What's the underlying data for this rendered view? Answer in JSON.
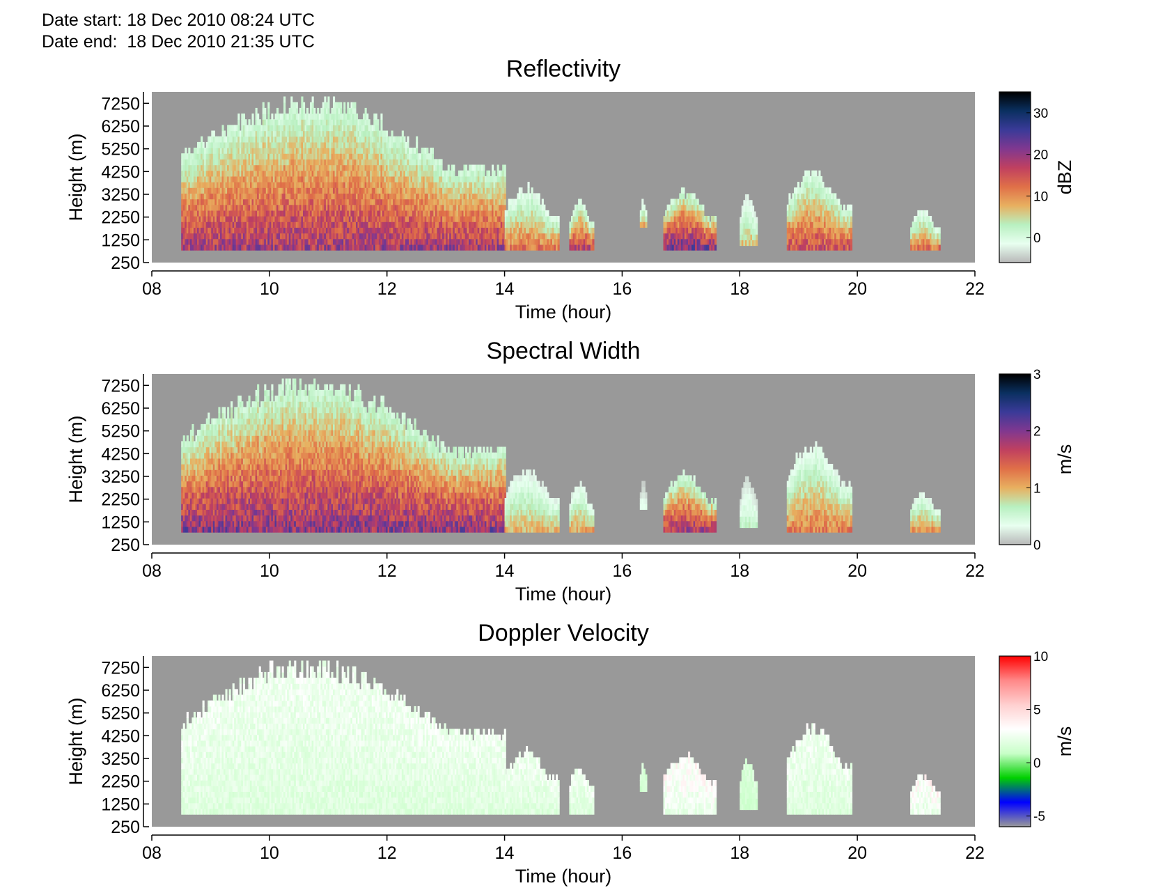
{
  "header": {
    "date_start_label": "Date start:",
    "date_start": "18 Dec 2010 08:24 UTC",
    "date_end_label": "Date end:",
    "date_end": "18 Dec 2010 21:35 UTC"
  },
  "chart_data": [
    {
      "type": "heatmap",
      "title": "Reflectivity",
      "xlabel": "Time (hour)",
      "ylabel": "Height (m)",
      "xlim": [
        8,
        22
      ],
      "ylim": [
        250,
        7750
      ],
      "x_ticks": [
        "08",
        "10",
        "12",
        "14",
        "16",
        "18",
        "20",
        "22"
      ],
      "y_ticks": [
        "250",
        "1250",
        "2250",
        "3250",
        "4250",
        "5250",
        "6250",
        "7250"
      ],
      "colorbar": {
        "label": "dBZ",
        "min": -6,
        "max": 35,
        "ticks": [
          "0",
          "10",
          "20",
          "30"
        ],
        "tick_values": [
          0,
          10,
          20,
          30
        ],
        "colors": [
          "#b8b8b8",
          "#e8fff0",
          "#b8f0c0",
          "#e8b060",
          "#e07048",
          "#c04060",
          "#803890",
          "#3a3a98",
          "#0a3060",
          "#000000"
        ]
      },
      "background_color": "#999999",
      "echo_regions": [
        {
          "t_start": 8.5,
          "t_end": 14.0,
          "h_top": 7600,
          "h_bottom": 800,
          "peak_value": 22
        },
        {
          "t_start": 14.0,
          "t_end": 14.9,
          "h_top": 3600,
          "h_bottom": 800,
          "peak_value": 14
        },
        {
          "t_start": 15.1,
          "t_end": 15.5,
          "h_top": 2900,
          "h_bottom": 800,
          "peak_value": 20
        },
        {
          "t_start": 16.3,
          "t_end": 16.4,
          "h_top": 3000,
          "h_bottom": 1800,
          "peak_value": 10
        },
        {
          "t_start": 16.7,
          "t_end": 17.6,
          "h_top": 3400,
          "h_bottom": 800,
          "peak_value": 25
        },
        {
          "t_start": 18.0,
          "t_end": 18.3,
          "h_top": 3200,
          "h_bottom": 1000,
          "peak_value": 8
        },
        {
          "t_start": 18.8,
          "t_end": 19.9,
          "h_top": 4300,
          "h_bottom": 800,
          "peak_value": 18
        },
        {
          "t_start": 20.9,
          "t_end": 21.4,
          "h_top": 2500,
          "h_bottom": 800,
          "peak_value": 14
        }
      ]
    },
    {
      "type": "heatmap",
      "title": "Spectral Width",
      "xlabel": "Time (hour)",
      "ylabel": "Height (m)",
      "xlim": [
        8,
        22
      ],
      "ylim": [
        250,
        7750
      ],
      "x_ticks": [
        "08",
        "10",
        "12",
        "14",
        "16",
        "18",
        "20",
        "22"
      ],
      "y_ticks": [
        "250",
        "1250",
        "2250",
        "3250",
        "4250",
        "5250",
        "6250",
        "7250"
      ],
      "colorbar": {
        "label": "m/s",
        "min": 0,
        "max": 3,
        "ticks": [
          "0",
          "1",
          "2",
          "3"
        ],
        "tick_values": [
          0,
          1,
          2,
          3
        ],
        "colors": [
          "#b8b8b8",
          "#e8fff0",
          "#b8f0c0",
          "#e8b060",
          "#e07048",
          "#c04060",
          "#803890",
          "#3a3a98",
          "#0a3060",
          "#000000"
        ]
      },
      "background_color": "#999999",
      "echo_regions": [
        {
          "t_start": 8.5,
          "t_end": 14.0,
          "h_top": 7600,
          "h_bottom": 800,
          "peak_value": 2.2
        },
        {
          "t_start": 14.0,
          "t_end": 14.9,
          "h_top": 3600,
          "h_bottom": 800,
          "peak_value": 1.1
        },
        {
          "t_start": 15.1,
          "t_end": 15.5,
          "h_top": 2900,
          "h_bottom": 800,
          "peak_value": 1.2
        },
        {
          "t_start": 16.3,
          "t_end": 16.4,
          "h_top": 3000,
          "h_bottom": 1800,
          "peak_value": 0.4
        },
        {
          "t_start": 16.7,
          "t_end": 17.6,
          "h_top": 3400,
          "h_bottom": 800,
          "peak_value": 2.0
        },
        {
          "t_start": 18.0,
          "t_end": 18.3,
          "h_top": 3200,
          "h_bottom": 1000,
          "peak_value": 0.7
        },
        {
          "t_start": 18.8,
          "t_end": 19.9,
          "h_top": 4800,
          "h_bottom": 800,
          "peak_value": 1.4
        },
        {
          "t_start": 20.9,
          "t_end": 21.4,
          "h_top": 2500,
          "h_bottom": 800,
          "peak_value": 1.3
        }
      ]
    },
    {
      "type": "heatmap",
      "title": "Doppler Velocity",
      "xlabel": "Time (hour)",
      "ylabel": "Height (m)",
      "xlim": [
        8,
        22
      ],
      "ylim": [
        250,
        7750
      ],
      "x_ticks": [
        "08",
        "10",
        "12",
        "14",
        "16",
        "18",
        "20",
        "22"
      ],
      "y_ticks": [
        "250",
        "1250",
        "2250",
        "3250",
        "4250",
        "5250",
        "6250",
        "7250"
      ],
      "colorbar": {
        "label": "m/s",
        "min": -6,
        "max": 10,
        "ticks": [
          "-5",
          "0",
          "5",
          "10"
        ],
        "tick_values": [
          -5,
          0,
          5,
          10
        ],
        "colors": [
          "#999999",
          "#0000ff",
          "#00d000",
          "#c8ffc8",
          "#ffffff",
          "#ffd0d0",
          "#ff8888",
          "#ff0000"
        ]
      },
      "background_color": "#999999",
      "echo_regions": [
        {
          "t_start": 8.5,
          "t_end": 14.0,
          "h_top": 7600,
          "h_bottom": 800,
          "peak_value": 3
        },
        {
          "t_start": 14.0,
          "t_end": 14.9,
          "h_top": 3600,
          "h_bottom": 800,
          "peak_value": 3
        },
        {
          "t_start": 15.1,
          "t_end": 15.5,
          "h_top": 2900,
          "h_bottom": 800,
          "peak_value": 3
        },
        {
          "t_start": 16.3,
          "t_end": 16.4,
          "h_top": 3000,
          "h_bottom": 1800,
          "peak_value": 2
        },
        {
          "t_start": 16.7,
          "t_end": 17.6,
          "h_top": 3400,
          "h_bottom": 800,
          "peak_value": 4
        },
        {
          "t_start": 18.0,
          "t_end": 18.3,
          "h_top": 3200,
          "h_bottom": 1000,
          "peak_value": 2
        },
        {
          "t_start": 18.8,
          "t_end": 19.9,
          "h_top": 4800,
          "h_bottom": 800,
          "peak_value": 3
        },
        {
          "t_start": 20.9,
          "t_end": 21.4,
          "h_top": 2500,
          "h_bottom": 800,
          "peak_value": 4
        }
      ]
    }
  ]
}
